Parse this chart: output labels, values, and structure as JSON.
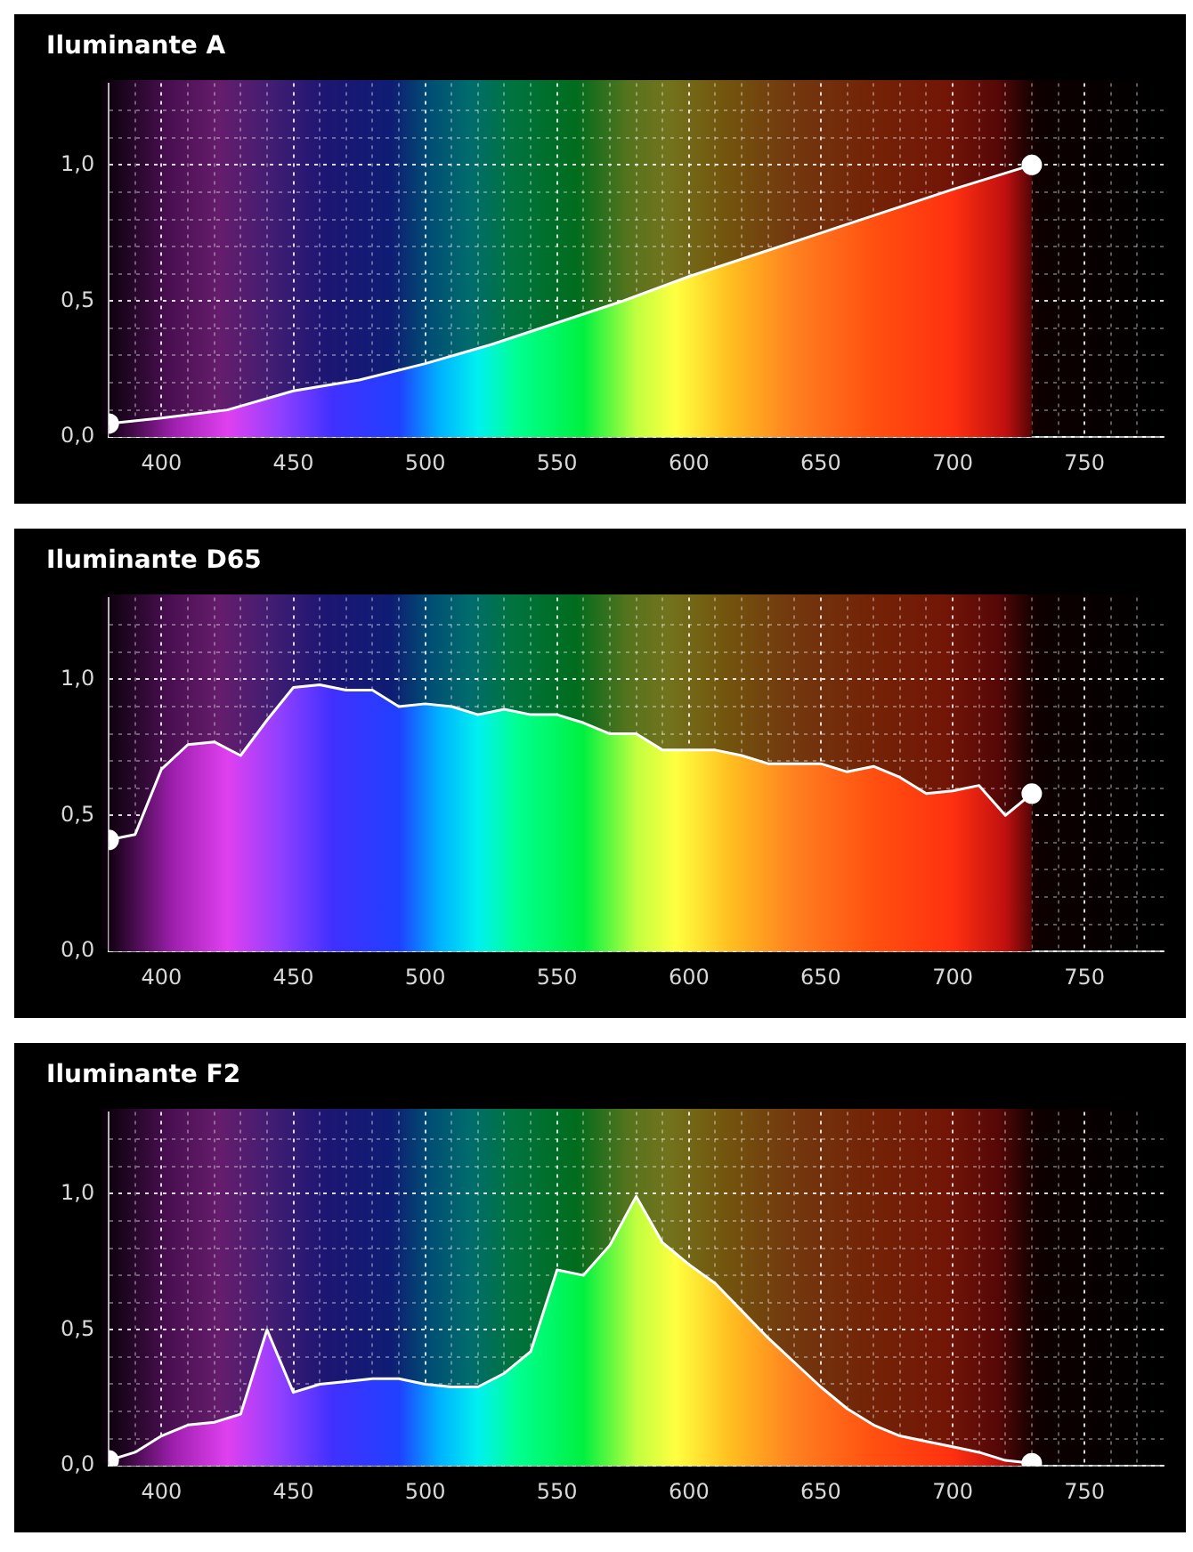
{
  "chart_data": [
    {
      "type": "area",
      "title": "Iluminante A",
      "grid": true,
      "xlim": [
        380,
        780
      ],
      "ylim": [
        0,
        1.3
      ],
      "x": [
        380,
        400,
        425,
        450,
        475,
        500,
        525,
        550,
        575,
        600,
        625,
        650,
        675,
        700,
        730
      ],
      "series": [
        {
          "color": "#ffffff",
          "values": [
            0.05,
            0.07,
            0.1,
            0.17,
            0.21,
            0.27,
            0.34,
            0.42,
            0.5,
            0.59,
            0.67,
            0.75,
            0.83,
            0.91,
            1.0
          ]
        }
      ],
      "xticks": [
        {
          "value": 390,
          "label": null
        },
        400,
        {
          "value": 410,
          "label": null
        },
        {
          "value": 420,
          "label": null
        },
        {
          "value": 430,
          "label": null
        },
        {
          "value": 440,
          "label": null
        },
        450,
        {
          "value": 460,
          "label": null
        },
        {
          "value": 470,
          "label": null
        },
        {
          "value": 480,
          "label": null
        },
        {
          "value": 490,
          "label": null
        },
        500,
        {
          "value": 510,
          "label": null
        },
        {
          "value": 520,
          "label": null
        },
        {
          "value": 530,
          "label": null
        },
        {
          "value": 540,
          "label": null
        },
        550,
        {
          "value": 560,
          "label": null
        },
        {
          "value": 570,
          "label": null
        },
        {
          "value": 580,
          "label": null
        },
        {
          "value": 590,
          "label": null
        },
        600,
        {
          "value": 610,
          "label": null
        },
        {
          "value": 620,
          "label": null
        },
        {
          "value": 630,
          "label": null
        },
        {
          "value": 640,
          "label": null
        },
        650,
        {
          "value": 660,
          "label": null
        },
        {
          "value": 670,
          "label": null
        },
        {
          "value": 680,
          "label": null
        },
        {
          "value": 690,
          "label": null
        },
        700,
        {
          "value": 710,
          "label": null
        },
        {
          "value": 720,
          "label": null
        },
        {
          "value": 730,
          "label": null
        },
        {
          "value": 740,
          "label": null
        },
        750,
        {
          "value": 760,
          "label": null
        },
        {
          "value": 770,
          "label": null
        }
      ],
      "yticks": [
        {
          "value": 0,
          "label": "0,0"
        },
        {
          "value": 0.1,
          "label": null
        },
        {
          "value": 0.2,
          "label": null
        },
        {
          "value": 0.3,
          "label": null
        },
        {
          "value": 0.4,
          "label": null
        },
        {
          "value": 0.5,
          "label": "0,5"
        },
        {
          "value": 0.6,
          "label": null
        },
        {
          "value": 0.7,
          "label": null
        },
        {
          "value": 0.8,
          "label": null
        },
        {
          "value": 0.9,
          "label": null
        },
        {
          "value": 1.0,
          "label": "1,0"
        },
        {
          "value": 1.1,
          "label": null
        },
        {
          "value": 1.2,
          "label": null
        }
      ]
    },
    {
      "type": "area",
      "title": "Iluminante D65",
      "grid": true,
      "xlim": [
        380,
        780
      ],
      "ylim": [
        0,
        1.3
      ],
      "x": [
        380,
        390,
        400,
        410,
        420,
        430,
        440,
        450,
        460,
        470,
        480,
        490,
        500,
        510,
        520,
        530,
        540,
        550,
        560,
        570,
        580,
        590,
        600,
        610,
        620,
        630,
        640,
        650,
        660,
        670,
        680,
        690,
        700,
        710,
        720,
        730
      ],
      "series": [
        {
          "color": "#ffffff",
          "values": [
            0.41,
            0.43,
            0.67,
            0.76,
            0.77,
            0.72,
            0.85,
            0.97,
            0.98,
            0.96,
            0.96,
            0.9,
            0.91,
            0.9,
            0.87,
            0.89,
            0.87,
            0.87,
            0.84,
            0.8,
            0.8,
            0.74,
            0.74,
            0.74,
            0.72,
            0.69,
            0.69,
            0.69,
            0.66,
            0.68,
            0.64,
            0.58,
            0.59,
            0.61,
            0.5,
            0.58
          ]
        }
      ],
      "xticks": [
        {
          "value": 390,
          "label": null
        },
        400,
        {
          "value": 410,
          "label": null
        },
        {
          "value": 420,
          "label": null
        },
        {
          "value": 430,
          "label": null
        },
        {
          "value": 440,
          "label": null
        },
        450,
        {
          "value": 460,
          "label": null
        },
        {
          "value": 470,
          "label": null
        },
        {
          "value": 480,
          "label": null
        },
        {
          "value": 490,
          "label": null
        },
        500,
        {
          "value": 510,
          "label": null
        },
        {
          "value": 520,
          "label": null
        },
        {
          "value": 530,
          "label": null
        },
        {
          "value": 540,
          "label": null
        },
        550,
        {
          "value": 560,
          "label": null
        },
        {
          "value": 570,
          "label": null
        },
        {
          "value": 580,
          "label": null
        },
        {
          "value": 590,
          "label": null
        },
        600,
        {
          "value": 610,
          "label": null
        },
        {
          "value": 620,
          "label": null
        },
        {
          "value": 630,
          "label": null
        },
        {
          "value": 640,
          "label": null
        },
        650,
        {
          "value": 660,
          "label": null
        },
        {
          "value": 670,
          "label": null
        },
        {
          "value": 680,
          "label": null
        },
        {
          "value": 690,
          "label": null
        },
        700,
        {
          "value": 710,
          "label": null
        },
        {
          "value": 720,
          "label": null
        },
        {
          "value": 730,
          "label": null
        },
        {
          "value": 740,
          "label": null
        },
        750,
        {
          "value": 760,
          "label": null
        },
        {
          "value": 770,
          "label": null
        }
      ],
      "yticks": [
        {
          "value": 0,
          "label": "0,0"
        },
        {
          "value": 0.1,
          "label": null
        },
        {
          "value": 0.2,
          "label": null
        },
        {
          "value": 0.3,
          "label": null
        },
        {
          "value": 0.4,
          "label": null
        },
        {
          "value": 0.5,
          "label": "0,5"
        },
        {
          "value": 0.6,
          "label": null
        },
        {
          "value": 0.7,
          "label": null
        },
        {
          "value": 0.8,
          "label": null
        },
        {
          "value": 0.9,
          "label": null
        },
        {
          "value": 1.0,
          "label": "1,0"
        },
        {
          "value": 1.1,
          "label": null
        },
        {
          "value": 1.2,
          "label": null
        }
      ]
    },
    {
      "type": "area",
      "title": "Iluminante F2",
      "grid": true,
      "xlim": [
        380,
        780
      ],
      "ylim": [
        0,
        1.3
      ],
      "x": [
        380,
        390,
        400,
        410,
        420,
        430,
        440,
        450,
        460,
        470,
        480,
        490,
        500,
        510,
        520,
        530,
        540,
        550,
        560,
        570,
        580,
        590,
        600,
        610,
        620,
        630,
        640,
        650,
        660,
        670,
        680,
        690,
        700,
        710,
        720,
        730
      ],
      "series": [
        {
          "color": "#ffffff",
          "values": [
            0.02,
            0.05,
            0.11,
            0.15,
            0.16,
            0.19,
            0.5,
            0.27,
            0.3,
            0.31,
            0.32,
            0.32,
            0.3,
            0.29,
            0.29,
            0.34,
            0.42,
            0.72,
            0.7,
            0.81,
            0.99,
            0.82,
            0.74,
            0.67,
            0.57,
            0.47,
            0.38,
            0.29,
            0.21,
            0.15,
            0.11,
            0.09,
            0.07,
            0.05,
            0.02,
            0.01
          ]
        }
      ],
      "xticks": [
        {
          "value": 390,
          "label": null
        },
        400,
        {
          "value": 410,
          "label": null
        },
        {
          "value": 420,
          "label": null
        },
        {
          "value": 430,
          "label": null
        },
        {
          "value": 440,
          "label": null
        },
        450,
        {
          "value": 460,
          "label": null
        },
        {
          "value": 470,
          "label": null
        },
        {
          "value": 480,
          "label": null
        },
        {
          "value": 490,
          "label": null
        },
        500,
        {
          "value": 510,
          "label": null
        },
        {
          "value": 520,
          "label": null
        },
        {
          "value": 530,
          "label": null
        },
        {
          "value": 540,
          "label": null
        },
        550,
        {
          "value": 560,
          "label": null
        },
        {
          "value": 570,
          "label": null
        },
        {
          "value": 580,
          "label": null
        },
        {
          "value": 590,
          "label": null
        },
        600,
        {
          "value": 610,
          "label": null
        },
        {
          "value": 620,
          "label": null
        },
        {
          "value": 630,
          "label": null
        },
        {
          "value": 640,
          "label": null
        },
        650,
        {
          "value": 660,
          "label": null
        },
        {
          "value": 670,
          "label": null
        },
        {
          "value": 680,
          "label": null
        },
        {
          "value": 690,
          "label": null
        },
        700,
        {
          "value": 710,
          "label": null
        },
        {
          "value": 720,
          "label": null
        },
        {
          "value": 730,
          "label": null
        },
        {
          "value": 740,
          "label": null
        },
        750,
        {
          "value": 760,
          "label": null
        },
        {
          "value": 770,
          "label": null
        }
      ],
      "yticks": [
        {
          "value": 0,
          "label": "0,0"
        },
        {
          "value": 0.1,
          "label": null
        },
        {
          "value": 0.2,
          "label": null
        },
        {
          "value": 0.3,
          "label": null
        },
        {
          "value": 0.4,
          "label": null
        },
        {
          "value": 0.5,
          "label": "0,5"
        },
        {
          "value": 0.6,
          "label": null
        },
        {
          "value": 0.7,
          "label": null
        },
        {
          "value": 0.8,
          "label": null
        },
        {
          "value": 0.9,
          "label": null
        },
        {
          "value": 1.0,
          "label": "1,0"
        },
        {
          "value": 1.1,
          "label": null
        },
        {
          "value": 1.2,
          "label": null
        }
      ]
    }
  ]
}
